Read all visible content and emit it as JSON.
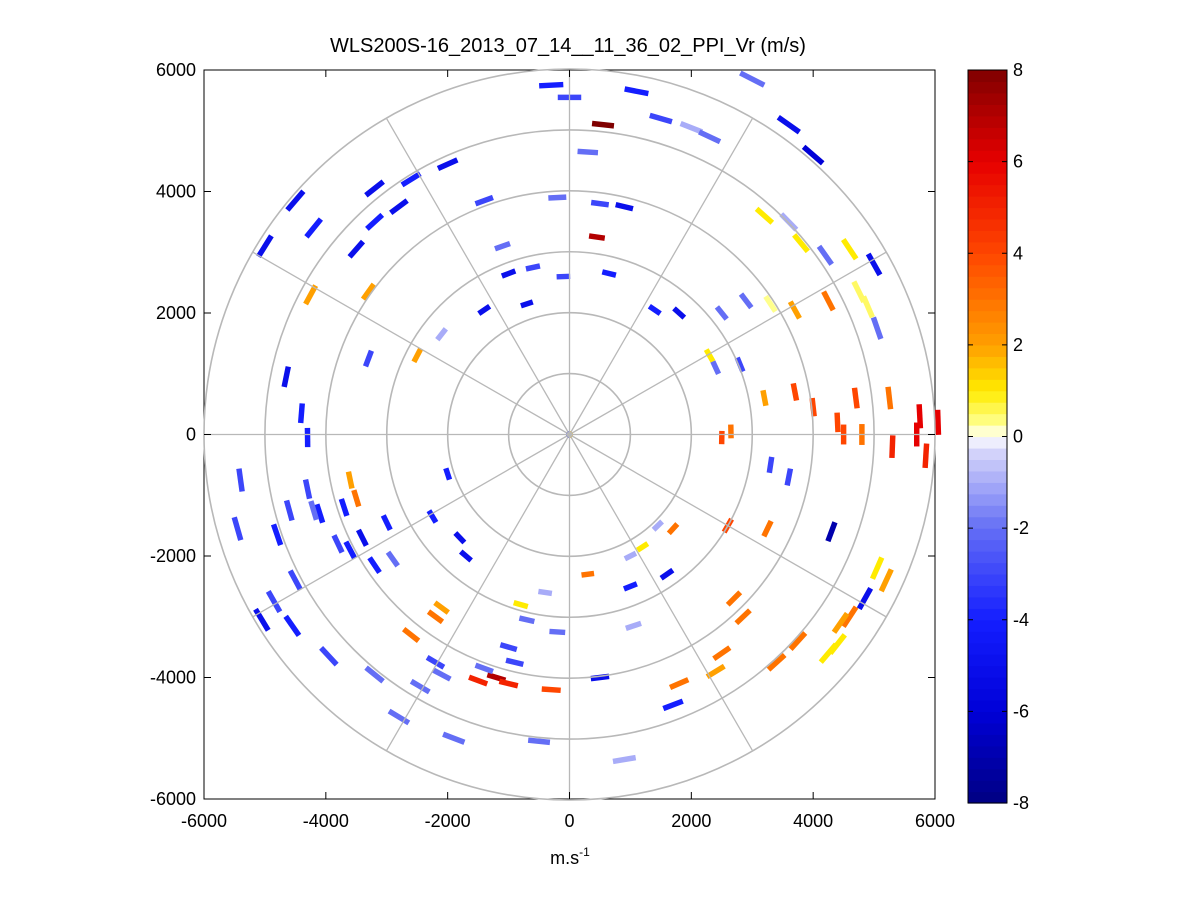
{
  "chart_data": {
    "type": "scatter",
    "subtype": "polar-ppi-scan",
    "title": "WLS200S-16_2013_07_14__11_36_02_PPI_Vr (m/s)",
    "xlabel_base": "m.s",
    "xlabel_sup": "-1",
    "ylabel": "",
    "xlim": [
      -6000,
      6000
    ],
    "ylim": [
      -6000,
      6000
    ],
    "x_ticks": [
      -6000,
      -4000,
      -2000,
      0,
      2000,
      4000,
      6000
    ],
    "y_ticks": [
      -6000,
      -4000,
      -2000,
      0,
      2000,
      4000,
      6000
    ],
    "x_tick_labels": [
      "-6000",
      "-4000",
      "-2000",
      "0",
      "2000",
      "4000",
      "6000"
    ],
    "y_tick_labels": [
      "-6000",
      "-4000",
      "-2000",
      "0",
      "2000",
      "4000",
      "6000"
    ],
    "polar_grid": {
      "ring_radii": [
        1000,
        2000,
        3000,
        4000,
        5000,
        6000
      ],
      "spoke_angles_deg": [
        0,
        30,
        60,
        90,
        120,
        150,
        180,
        210,
        240,
        270,
        300,
        330
      ]
    },
    "colorbar": {
      "range": [
        -8,
        8
      ],
      "ticks": [
        -8,
        -6,
        -4,
        -2,
        0,
        2,
        4,
        6,
        8
      ],
      "tick_labels": [
        "-8",
        "-6",
        "-4",
        "-2",
        "0",
        "2",
        "4",
        "6",
        "8"
      ]
    },
    "points": [
      [
        -300,
        5750,
        -4
      ],
      [
        0,
        5550,
        -3
      ],
      [
        1100,
        5650,
        -4
      ],
      [
        3000,
        5850,
        -2
      ],
      [
        550,
        5100,
        8
      ],
      [
        1500,
        5200,
        -3
      ],
      [
        2000,
        5050,
        -1
      ],
      [
        3600,
        5100,
        -5
      ],
      [
        4000,
        4600,
        -6
      ],
      [
        300,
        4650,
        -2
      ],
      [
        2300,
        4900,
        -2
      ],
      [
        -2000,
        4450,
        -5
      ],
      [
        -2600,
        4200,
        -4
      ],
      [
        -3200,
        4050,
        -5
      ],
      [
        -4500,
        3850,
        -5
      ],
      [
        -2800,
        3750,
        -5
      ],
      [
        -1400,
        3850,
        -3
      ],
      [
        -200,
        3900,
        -2
      ],
      [
        500,
        3800,
        -3
      ],
      [
        900,
        3750,
        -5
      ],
      [
        -3200,
        3500,
        -4
      ],
      [
        -4200,
        3400,
        -4
      ],
      [
        -3500,
        3050,
        -5
      ],
      [
        -5000,
        3100,
        -5
      ],
      [
        3200,
        3600,
        1
      ],
      [
        3600,
        3500,
        -1
      ],
      [
        3800,
        3150,
        1
      ],
      [
        4200,
        2950,
        -2
      ],
      [
        4600,
        3050,
        1
      ],
      [
        5000,
        2800,
        -5
      ],
      [
        450,
        3250,
        7
      ],
      [
        -1100,
        3100,
        -2
      ],
      [
        -600,
        2750,
        -3
      ],
      [
        -1000,
        2650,
        -5
      ],
      [
        -100,
        2600,
        -3
      ],
      [
        650,
        2650,
        -4
      ],
      [
        -4250,
        2300,
        2
      ],
      [
        -3300,
        2350,
        2
      ],
      [
        -1400,
        2050,
        -5
      ],
      [
        -700,
        2150,
        -5
      ],
      [
        1400,
        2050,
        -4
      ],
      [
        1800,
        2000,
        -5
      ],
      [
        2500,
        2000,
        -2
      ],
      [
        2900,
        2200,
        -2
      ],
      [
        3300,
        2150,
        0.3
      ],
      [
        3700,
        2050,
        2
      ],
      [
        4250,
        2200,
        3
      ],
      [
        4750,
        2350,
        0.5
      ],
      [
        4900,
        2100,
        0.5
      ],
      [
        5050,
        1750,
        -2
      ],
      [
        -2100,
        1650,
        -1
      ],
      [
        -2500,
        1300,
        2
      ],
      [
        -3300,
        1250,
        -3
      ],
      [
        -4650,
        950,
        -5
      ],
      [
        -4400,
        350,
        -4
      ],
      [
        -4300,
        -50,
        -4
      ],
      [
        2300,
        1300,
        1
      ],
      [
        2800,
        1150,
        -3
      ],
      [
        2400,
        1100,
        -2
      ],
      [
        4700,
        600,
        4
      ],
      [
        5250,
        600,
        3
      ],
      [
        5750,
        300,
        6
      ],
      [
        6050,
        200,
        6
      ],
      [
        3700,
        700,
        4
      ],
      [
        4000,
        450,
        4
      ],
      [
        4400,
        200,
        4
      ],
      [
        4500,
        0,
        4
      ],
      [
        4800,
        0,
        3
      ],
      [
        3200,
        600,
        2
      ],
      [
        2500,
        -50,
        4
      ],
      [
        2650,
        50,
        3
      ],
      [
        5700,
        0,
        6
      ],
      [
        5300,
        -200,
        5
      ],
      [
        5850,
        -350,
        5
      ],
      [
        3300,
        -500,
        -3
      ],
      [
        3600,
        -700,
        -3
      ],
      [
        4300,
        -1600,
        -7
      ],
      [
        3250,
        -1550,
        3
      ],
      [
        2600,
        -1500,
        4
      ],
      [
        5050,
        -2200,
        1
      ],
      [
        5200,
        -2400,
        2
      ],
      [
        4850,
        -2700,
        -5
      ],
      [
        4600,
        -3000,
        3
      ],
      [
        4450,
        -3100,
        2
      ],
      [
        4400,
        -3450,
        1
      ],
      [
        4250,
        -3600,
        1
      ],
      [
        3750,
        -3400,
        3
      ],
      [
        3400,
        -3750,
        3
      ],
      [
        2500,
        -3600,
        3
      ],
      [
        2400,
        -3900,
        2
      ],
      [
        1800,
        -4100,
        3
      ],
      [
        1700,
        -4450,
        -4
      ],
      [
        2850,
        -3000,
        3
      ],
      [
        2700,
        -2700,
        3
      ],
      [
        1700,
        -1550,
        3
      ],
      [
        1450,
        -1500,
        -1
      ],
      [
        1200,
        -1850,
        1
      ],
      [
        1000,
        -2000,
        -1
      ],
      [
        1000,
        -2500,
        -4
      ],
      [
        1600,
        -2300,
        -5
      ],
      [
        300,
        -2300,
        3
      ],
      [
        -400,
        -2600,
        -1
      ],
      [
        -800,
        -2800,
        1
      ],
      [
        -700,
        -3050,
        -2
      ],
      [
        -200,
        -3250,
        -2
      ],
      [
        1050,
        -3150,
        -1
      ],
      [
        -1000,
        -3500,
        -3
      ],
      [
        -900,
        -3750,
        -3
      ],
      [
        -2200,
        -3000,
        3
      ],
      [
        -2100,
        -2850,
        2
      ],
      [
        -2600,
        -3300,
        3
      ],
      [
        -3200,
        -2150,
        -4
      ],
      [
        -2900,
        -2050,
        -2
      ],
      [
        -3400,
        -1700,
        -5
      ],
      [
        -3600,
        -1900,
        -4
      ],
      [
        -3800,
        -1800,
        -3
      ],
      [
        -4100,
        -1300,
        -4
      ],
      [
        -4600,
        -1250,
        -3
      ],
      [
        -4500,
        -2400,
        -3
      ],
      [
        -4850,
        -2750,
        -3
      ],
      [
        -5050,
        -3050,
        -5
      ],
      [
        -5450,
        -1550,
        -3
      ],
      [
        -4800,
        -1650,
        -4
      ],
      [
        -3700,
        -1200,
        -4
      ],
      [
        -3600,
        -750,
        2
      ],
      [
        -3500,
        -1050,
        3
      ],
      [
        -3000,
        -1450,
        -4
      ],
      [
        -2000,
        -650,
        -4
      ],
      [
        -2250,
        -1350,
        -4
      ],
      [
        -1800,
        -1700,
        -5
      ],
      [
        -1700,
        -2000,
        -5
      ],
      [
        -2200,
        -3750,
        -3
      ],
      [
        -2100,
        -3950,
        -2
      ],
      [
        -2450,
        -4150,
        -2
      ],
      [
        -2800,
        -4650,
        -2
      ],
      [
        -3200,
        -3950,
        -2
      ],
      [
        -3950,
        -3650,
        -3
      ],
      [
        -4550,
        -3150,
        -4
      ],
      [
        -4200,
        -1250,
        -2
      ],
      [
        -1900,
        -5000,
        -2
      ],
      [
        -500,
        -5050,
        -2
      ],
      [
        900,
        -5350,
        -1
      ],
      [
        -1200,
        -4000,
        7
      ],
      [
        -1400,
        -3850,
        -2
      ],
      [
        -1500,
        -4050,
        5
      ],
      [
        -1000,
        -4100,
        5
      ],
      [
        -300,
        -4200,
        4
      ],
      [
        500,
        -4000,
        -5
      ],
      [
        -4300,
        -900,
        -3
      ],
      [
        -5400,
        -750,
        -3
      ]
    ]
  }
}
